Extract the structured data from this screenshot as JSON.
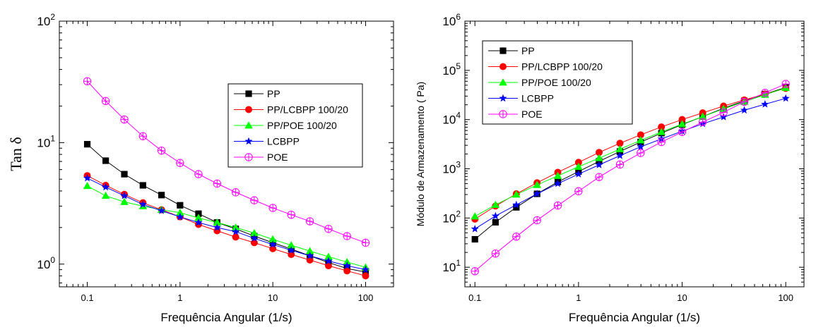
{
  "chart_data": [
    {
      "type": "line",
      "title": "",
      "xlabel": "Frequência Angular (1/s)",
      "ylabel": "Tan δ",
      "xscale": "log",
      "yscale": "log",
      "xlim": [
        0.05,
        200
      ],
      "ylim": [
        0.65,
        100
      ],
      "xtick_labels": [
        "0.1",
        "1",
        "10",
        "100"
      ],
      "ytick_labels": [
        {
          "base": "10",
          "exp": "0"
        },
        {
          "base": "10",
          "exp": "1"
        },
        {
          "base": "10",
          "exp": "2"
        }
      ],
      "legend_position": "center-right",
      "x": [
        0.1,
        0.158,
        0.251,
        0.398,
        0.631,
        1,
        1.58,
        2.51,
        3.98,
        6.31,
        10,
        15.8,
        25.1,
        39.8,
        63.1,
        100
      ],
      "series": [
        {
          "name": "PP",
          "color": "#000000",
          "marker": "square",
          "values": [
            9.7,
            7.1,
            5.5,
            4.45,
            3.7,
            3.05,
            2.6,
            2.2,
            1.95,
            1.7,
            1.5,
            1.33,
            1.17,
            1.03,
            0.92,
            0.86
          ]
        },
        {
          "name": "PP/LCBPP 100/20",
          "color": "#ff0000",
          "marker": "circle",
          "values": [
            5.35,
            4.45,
            3.75,
            3.2,
            2.8,
            2.45,
            2.12,
            1.88,
            1.67,
            1.5,
            1.34,
            1.2,
            1.08,
            0.97,
            0.88,
            0.8
          ]
        },
        {
          "name": "PP/POE 100/20",
          "color": "#00ff00",
          "marker": "triangle",
          "values": [
            4.4,
            3.65,
            3.25,
            3.0,
            2.8,
            2.65,
            2.4,
            2.2,
            2.0,
            1.8,
            1.6,
            1.43,
            1.28,
            1.15,
            1.04,
            0.94
          ]
        },
        {
          "name": "LCBPP",
          "color": "#0000ff",
          "marker": "star",
          "values": [
            5.1,
            4.3,
            3.65,
            3.1,
            2.75,
            2.45,
            2.2,
            2.0,
            1.85,
            1.63,
            1.45,
            1.3,
            1.17,
            1.06,
            0.97,
            0.9
          ]
        },
        {
          "name": "POE",
          "color": "#ff00ff",
          "marker": "circle-plus",
          "values": [
            32,
            22,
            15.5,
            11.3,
            8.6,
            6.8,
            5.5,
            4.6,
            3.9,
            3.35,
            2.9,
            2.55,
            2.25,
            1.95,
            1.7,
            1.5
          ]
        }
      ]
    },
    {
      "type": "line",
      "title": "",
      "xlabel": "Frequência Angular (1/s)",
      "ylabel": "Módulo de Armazenamento (  Pa)",
      "xscale": "log",
      "yscale": "log",
      "xlim": [
        0.08,
        150
      ],
      "ylim": [
        4,
        1000000
      ],
      "xtick_labels": [
        "0.1",
        "1",
        "10",
        "100"
      ],
      "ytick_labels": [
        {
          "base": "10",
          "exp": "1"
        },
        {
          "base": "10",
          "exp": "2"
        },
        {
          "base": "10",
          "exp": "3"
        },
        {
          "base": "10",
          "exp": "4"
        },
        {
          "base": "10",
          "exp": "5"
        },
        {
          "base": "10",
          "exp": "6"
        }
      ],
      "legend_position": "top-left",
      "x": [
        0.1,
        0.158,
        0.251,
        0.398,
        0.631,
        1,
        1.58,
        2.51,
        3.98,
        6.31,
        10,
        15.8,
        25.1,
        39.8,
        63.1,
        100
      ],
      "series": [
        {
          "name": "PP",
          "color": "#000000",
          "marker": "square",
          "values": [
            37,
            82,
            165,
            310,
            540,
            880,
            1420,
            2250,
            3500,
            5300,
            7900,
            11500,
            17000,
            24000,
            33000,
            45000
          ]
        },
        {
          "name": "PP/LCBPP 100/20",
          "color": "#ff0000",
          "marker": "circle",
          "values": [
            95,
            175,
            310,
            520,
            850,
            1350,
            2150,
            3300,
            4900,
            7100,
            10000,
            13700,
            18800,
            25000,
            33000,
            43000
          ]
        },
        {
          "name": "PP/POE 100/20",
          "color": "#00ff00",
          "marker": "triangle",
          "values": [
            108,
            185,
            300,
            470,
            720,
            1100,
            1650,
            2500,
            3800,
            5600,
            8100,
            11500,
            16500,
            23000,
            32000,
            44000
          ]
        },
        {
          "name": "LCBPP",
          "color": "#0000ff",
          "marker": "star",
          "values": [
            60,
            110,
            185,
            310,
            500,
            780,
            1200,
            1850,
            2800,
            4050,
            5800,
            8200,
            11300,
            15500,
            20500,
            27000
          ]
        },
        {
          "name": "POE",
          "color": "#ff00ff",
          "marker": "circle-plus",
          "values": [
            8.3,
            19,
            42,
            90,
            180,
            350,
            680,
            1220,
            2100,
            3500,
            5600,
            8900,
            14000,
            23000,
            35000,
            53000
          ]
        }
      ]
    }
  ]
}
